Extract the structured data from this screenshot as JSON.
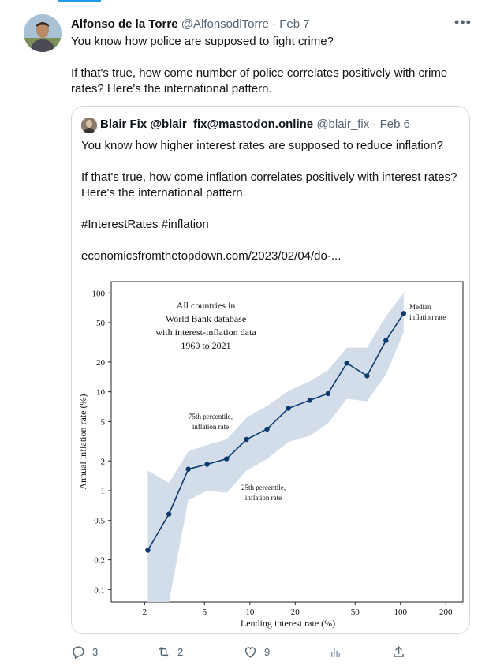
{
  "tweet": {
    "author_name": "Alfonso de la Torre",
    "handle": "@AlfonsodlTorre",
    "date": "Feb 7",
    "more_icon": "ellipsis-icon",
    "text_p1": "You know how police are supposed to fight crime?",
    "text_p2": "If that's true, how come number of police correlates positively with crime rates? Here's the international pattern.",
    "actions": {
      "replies": "3",
      "retweets": "2",
      "likes": "9",
      "views": "",
      "share": ""
    }
  },
  "quote": {
    "author_name": "Blair Fix @blair_fix@mastodon.online",
    "handle": "@blair_fix",
    "date": "Feb 6",
    "text_p1": "You know how higher interest rates are supposed to reduce inflation?",
    "text_p2": "If that's true, how come inflation correlates positively with interest rates? Here's the international pattern.",
    "hashtags": "#InterestRates #inflation",
    "link": "economicsfromthetopdown.com/2023/02/04/do-..."
  },
  "chart_data": {
    "type": "line",
    "xlabel": "Lending interest rate (%)",
    "ylabel": "Annual inflation rate (%)",
    "x_scale": "log",
    "y_scale": "log",
    "xlim": [
      1.2,
      260
    ],
    "ylim": [
      0.075,
      130
    ],
    "x_ticks": [
      2,
      5,
      10,
      20,
      50,
      100,
      200
    ],
    "y_ticks": [
      0.1,
      0.2,
      0.5,
      1,
      2,
      5,
      10,
      20,
      50,
      100
    ],
    "x_tick_labels": [
      "2",
      "5",
      "10",
      "20",
      "50",
      "100",
      "200"
    ],
    "y_tick_labels": [
      "0.1",
      "0.2",
      "0.5",
      "1",
      "2",
      "5",
      "10",
      "20",
      "50",
      "100"
    ],
    "annotation_main": [
      "All countries in",
      "World Bank database",
      "with interest-inflation data",
      "1960 to 2021"
    ],
    "annotation_median": [
      "Median",
      "inflation rate"
    ],
    "annotation_p75": [
      "75th percentile,",
      "inflation rate"
    ],
    "annotation_p25": [
      "25th percentile,",
      "inflation rate"
    ],
    "series": [
      {
        "name": "Median inflation rate",
        "x": [
          2.1,
          2.9,
          3.9,
          5.2,
          7.0,
          9.5,
          13,
          18,
          25,
          33,
          44,
          60,
          80,
          105
        ],
        "y": [
          0.25,
          0.58,
          1.65,
          1.85,
          2.1,
          3.3,
          4.2,
          6.8,
          8.2,
          9.6,
          19.5,
          14.5,
          33,
          62
        ]
      }
    ],
    "band": {
      "x": [
        2.1,
        2.9,
        3.9,
        5.2,
        7.0,
        9.5,
        13,
        18,
        25,
        33,
        44,
        60,
        80,
        105
      ],
      "upper": [
        1.6,
        1.2,
        2.5,
        2.9,
        3.3,
        5.5,
        7.2,
        10.2,
        12.8,
        16.5,
        28,
        28,
        58,
        100
      ],
      "lower": [
        0.02,
        0.02,
        0.8,
        1.0,
        0.95,
        1.6,
        2.1,
        3.1,
        3.6,
        4.8,
        8.5,
        8.0,
        15,
        40
      ]
    },
    "colors": {
      "line": "#0d3b6e",
      "band": "#d2dde9"
    }
  }
}
